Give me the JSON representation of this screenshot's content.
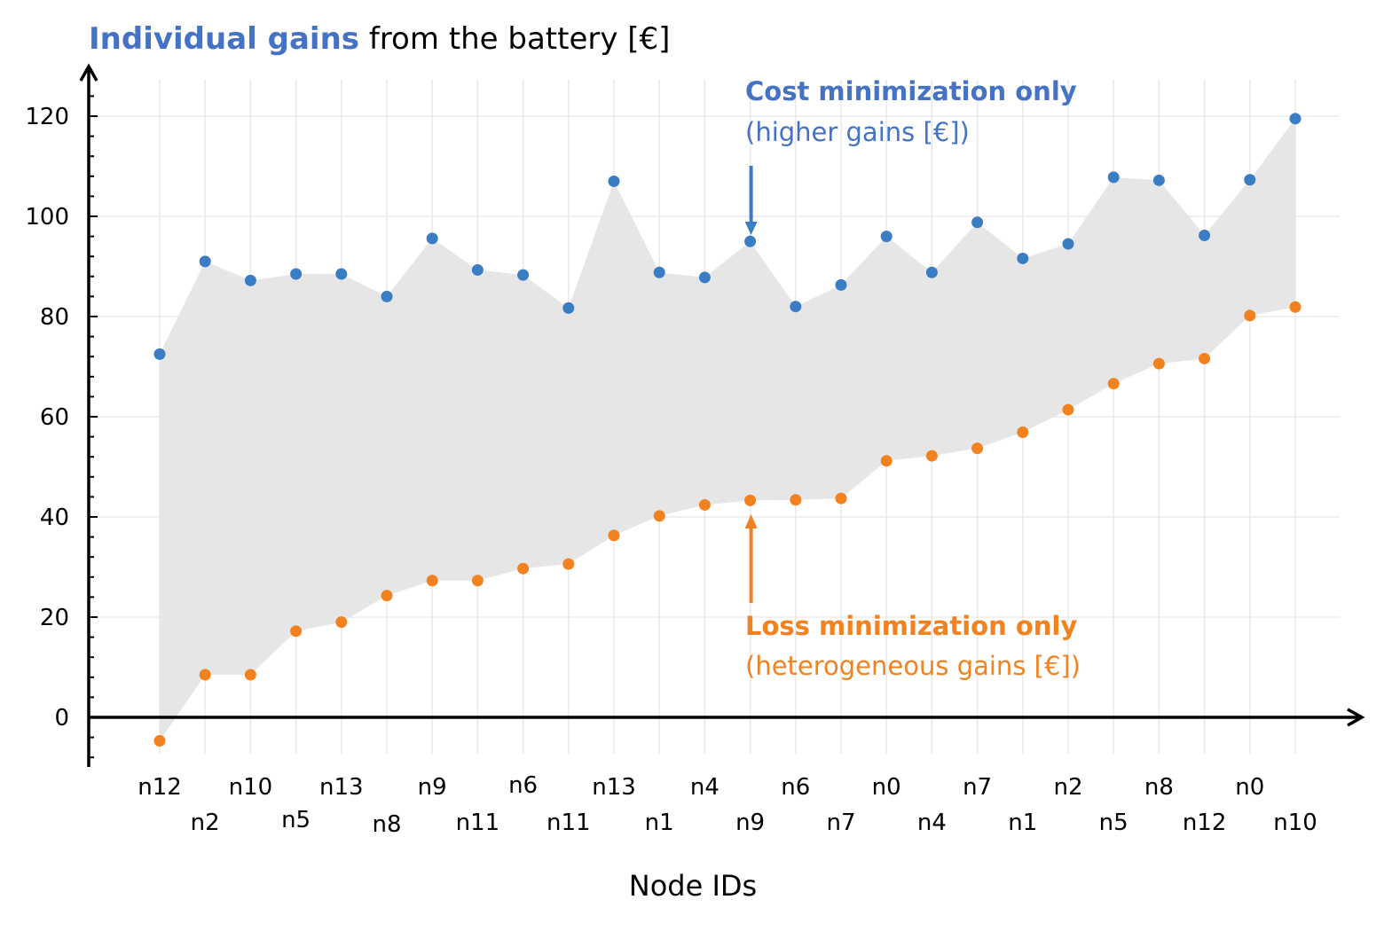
{
  "colors": {
    "cost": "#3b7dc4",
    "loss": "#f28120",
    "title_accent": "#4472c4",
    "fill": "#e3e3e3",
    "grid": "#e6e6e6"
  },
  "chart_data": {
    "type": "scatter",
    "title_accent": "Individual gains",
    "title_rest": " from the battery [€]",
    "xlabel": "Node IDs",
    "ylabel": "",
    "ylim": [
      -10,
      130
    ],
    "yticks": [
      0,
      20,
      40,
      60,
      80,
      100,
      120
    ],
    "grid": true,
    "categories": [
      "n12",
      "n2",
      "n10",
      "n5",
      "n13",
      "n8",
      "n9",
      "n11",
      "n6",
      "n11",
      "n13",
      "n1",
      "n4",
      "n9",
      "n6",
      "n7",
      "n0",
      "n4",
      "n7",
      "n1",
      "n2",
      "n5",
      "n8",
      "n12",
      "n0",
      "n10"
    ],
    "series": [
      {
        "name": "Cost minimization only",
        "values": [
          72.5,
          91,
          87.2,
          88.5,
          88.5,
          84,
          95.6,
          89.3,
          88.3,
          81.7,
          107,
          88.8,
          87.8,
          95,
          82,
          86.3,
          96,
          88.8,
          98.8,
          91.6,
          94.5,
          107.8,
          107.2,
          96.2,
          107.3,
          119.5
        ]
      },
      {
        "name": "Loss minimization only",
        "values": [
          -4.7,
          8.5,
          8.5,
          17.2,
          19,
          24.3,
          27.3,
          27.3,
          29.7,
          30.6,
          36.3,
          40.2,
          42.4,
          43.3,
          43.4,
          43.7,
          51.2,
          52.2,
          53.7,
          56.9,
          61.4,
          66.6,
          70.6,
          71.6,
          80.2,
          81.9
        ]
      }
    ],
    "annotations": {
      "cost_bold": "Cost minimization only",
      "cost_sub": "(higher gains [€])",
      "loss_bold": "Loss minimization only",
      "loss_sub": "(heterogeneous gains [€])"
    }
  }
}
